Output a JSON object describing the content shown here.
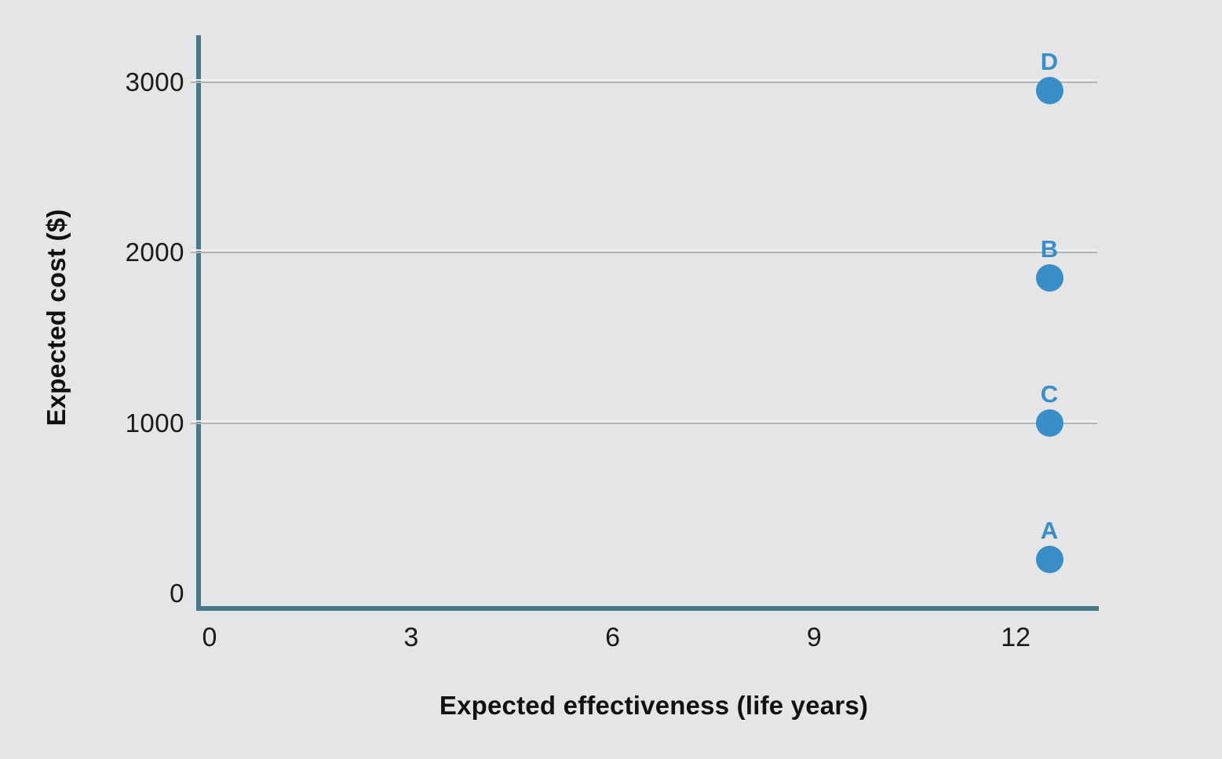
{
  "chart_data": {
    "type": "scatter",
    "title": "",
    "xlabel": "Expected effectiveness (life years)",
    "ylabel": "Expected cost ($)",
    "xlim": [
      0,
      13.2
    ],
    "ylim": [
      0,
      3250
    ],
    "x_ticks": [
      0,
      3,
      6,
      9,
      12
    ],
    "y_ticks": [
      0,
      1000,
      2000,
      3000
    ],
    "grid": "horizontal-only, gridlines at 1000/2000/3000, none at 0",
    "legend": "none",
    "points": [
      {
        "label": "A",
        "x": 12.5,
        "y": 200
      },
      {
        "label": "B",
        "x": 12.5,
        "y": 1850
      },
      {
        "label": "C",
        "x": 12.5,
        "y": 1000
      },
      {
        "label": "D",
        "x": 12.5,
        "y": 2950
      }
    ],
    "colors": {
      "background": "#e5e5e7",
      "axis": "#4a7886",
      "gridline": "#b3b4b6",
      "gridline_highlight": "#f0f0f2",
      "point": "#3a8ec8",
      "point_label": "#3a8ec8",
      "tick_text": "#1a1a1a",
      "title_text": "#111111"
    }
  }
}
